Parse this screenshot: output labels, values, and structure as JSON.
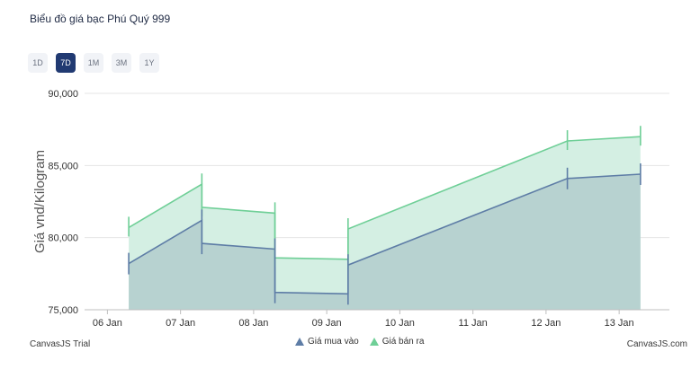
{
  "title": "Biểu đồ giá bạc Phú Quý 999",
  "ranges": [
    {
      "label": "1D",
      "active": false
    },
    {
      "label": "7D",
      "active": true
    },
    {
      "label": "1M",
      "active": false
    },
    {
      "label": "3M",
      "active": false
    },
    {
      "label": "1Y",
      "active": false
    }
  ],
  "footer": {
    "left": "CanvasJS Trial",
    "right": "CanvasJS.com"
  },
  "colors": {
    "buy_line": "#5e7da6",
    "buy_fill": "#b7d2d0",
    "sell_line": "#6fcf97",
    "sell_fill": "#d4efe3",
    "grid": "#e4e4e4",
    "axis_text": "#333333"
  },
  "chart_data": {
    "type": "area",
    "ylabel": "Giá vnd/Kilogram",
    "xlabel": "",
    "ylim": [
      75000,
      90000
    ],
    "yticks": [
      75000,
      80000,
      85000,
      90000
    ],
    "ytick_labels": [
      "75,000",
      "80,000",
      "85,000",
      "90,000"
    ],
    "xlim": [
      "2024-01-05T16:30",
      "2024-01-13T16:30"
    ],
    "xtick_labels": [
      "06 Jan",
      "07 Jan",
      "08 Jan",
      "09 Jan",
      "10 Jan",
      "11 Jan",
      "12 Jan",
      "13 Jan"
    ],
    "xticks": [
      "2024-01-06",
      "2024-01-07",
      "2024-01-08",
      "2024-01-09",
      "2024-01-10",
      "2024-01-11",
      "2024-01-12",
      "2024-01-13"
    ],
    "grid": true,
    "legend": "bottom-center",
    "series": [
      {
        "name": "Giá mua vào",
        "points": [
          {
            "x": "2024-01-06T07:00",
            "y": 78200
          },
          {
            "x": "2024-01-07T07:00",
            "y": 81200
          },
          {
            "x": "2024-01-07T07:00",
            "y": 79600
          },
          {
            "x": "2024-01-08T07:00",
            "y": 79200
          },
          {
            "x": "2024-01-08T07:00",
            "y": 76200
          },
          {
            "x": "2024-01-09T07:00",
            "y": 76100
          },
          {
            "x": "2024-01-09T07:00",
            "y": 78100
          },
          {
            "x": "2024-01-12T07:00",
            "y": 84100
          },
          {
            "x": "2024-01-13T07:00",
            "y": 84400
          }
        ]
      },
      {
        "name": "Giá bán ra",
        "points": [
          {
            "x": "2024-01-06T07:00",
            "y": 80700
          },
          {
            "x": "2024-01-07T07:00",
            "y": 83700
          },
          {
            "x": "2024-01-07T07:00",
            "y": 82100
          },
          {
            "x": "2024-01-08T07:00",
            "y": 81700
          },
          {
            "x": "2024-01-08T07:00",
            "y": 78600
          },
          {
            "x": "2024-01-09T07:00",
            "y": 78500
          },
          {
            "x": "2024-01-09T07:00",
            "y": 80600
          },
          {
            "x": "2024-01-12T07:00",
            "y": 86700
          },
          {
            "x": "2024-01-13T07:00",
            "y": 87000
          }
        ]
      }
    ]
  }
}
